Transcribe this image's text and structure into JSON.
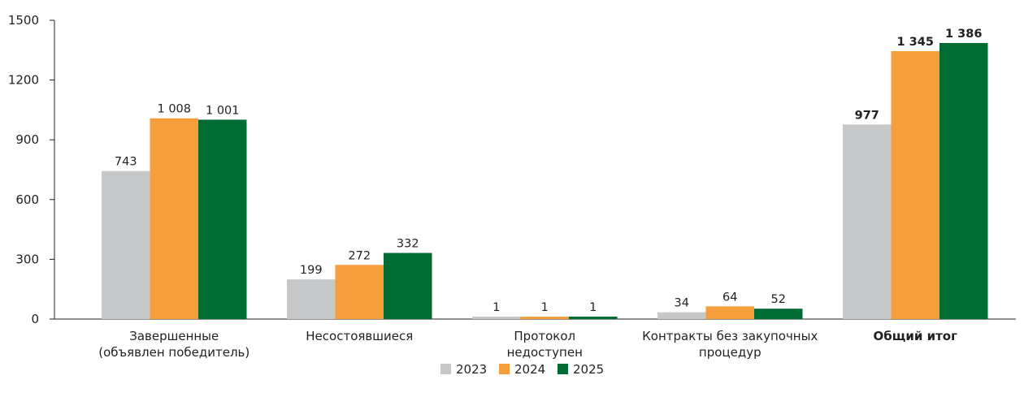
{
  "chart_data": {
    "type": "bar",
    "categories": [
      [
        "Завершенные",
        "(объявлен победитель)"
      ],
      [
        "Несостоявшиеся"
      ],
      [
        "Протокол",
        "недоступен"
      ],
      [
        "Контракты без закупочных",
        "процедур"
      ],
      [
        "Общий итог"
      ]
    ],
    "bold_categories": [
      4
    ],
    "series": [
      {
        "name": "2023",
        "color": "#c6c7c8",
        "values": [
          743,
          199,
          1,
          34,
          977
        ],
        "labels": [
          "743",
          "199",
          "1",
          "34",
          "977"
        ]
      },
      {
        "name": "2024",
        "color": "#f59f3c",
        "values": [
          1008,
          272,
          1,
          64,
          1345
        ],
        "labels": [
          "1 008",
          "272",
          "1",
          "64",
          "1 345"
        ]
      },
      {
        "name": "2025",
        "color": "#006b33",
        "values": [
          1001,
          332,
          1,
          52,
          1386
        ],
        "labels": [
          "1 001",
          "332",
          "1",
          "52",
          "1 386"
        ]
      }
    ],
    "yticks": [
      0,
      300,
      600,
      900,
      1200,
      1500
    ],
    "ylim": [
      0,
      1500
    ],
    "grid": false,
    "legend_position": "bottom-center",
    "title": "",
    "xlabel": "",
    "ylabel": ""
  }
}
